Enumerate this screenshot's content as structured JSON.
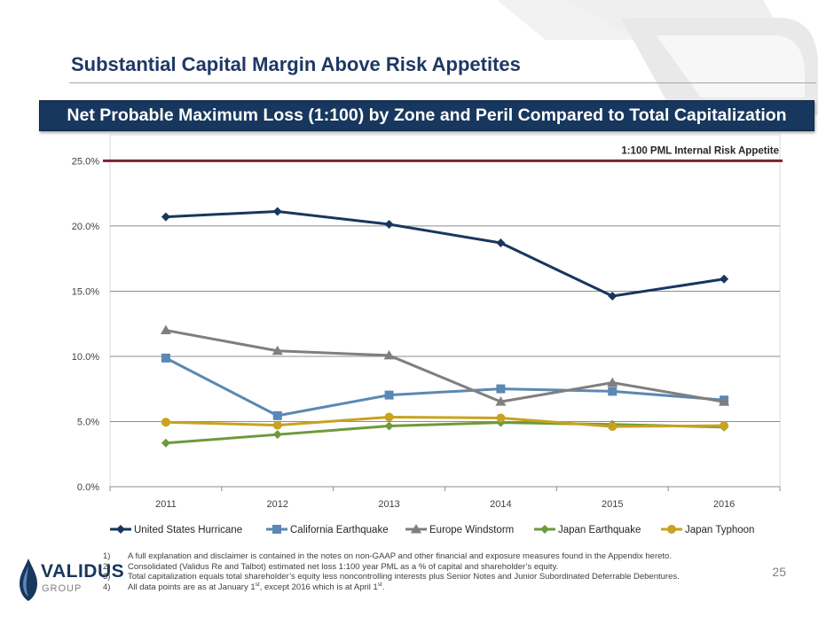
{
  "slide": {
    "title": "Substantial Capital Margin Above Risk Appetites",
    "banner": "Net Probable Maximum Loss (1:100) by Zone and Peril Compared to Total Capitalization",
    "page_number": "25"
  },
  "logo": {
    "name": "VALIDUS",
    "sub": "GROUP"
  },
  "footnotes": [
    {
      "num": "1)",
      "text": "A full explanation and disclaimer is contained in the notes on non-GAAP and other financial and exposure measures found in the Appendix hereto."
    },
    {
      "num": "2)",
      "text": "Consolidated (Validus Re and Talbot) estimated net loss 1:100 year PML as a % of capital and shareholder’s equity."
    },
    {
      "num": "3)",
      "text": "Total capitalization equals total shareholder’s equity less noncontrolling interests plus Senior Notes and Junior Subordinated Deferrable Debentures."
    },
    {
      "num": "4)",
      "text_before": "All data points are as at January 1",
      "sup1": "st",
      "text_mid": ", except 2016 which is at April 1",
      "sup2": "st",
      "text_after": "."
    }
  ],
  "chart_data": {
    "type": "line",
    "categories": [
      "2011",
      "2012",
      "2013",
      "2014",
      "2015",
      "2016"
    ],
    "y_ticks": [
      "0.0%",
      "5.0%",
      "10.0%",
      "15.0%",
      "20.0%",
      "25.0%"
    ],
    "ylim": [
      0,
      0.27
    ],
    "grid": true,
    "legend_position": "bottom",
    "reference_line": {
      "value": 0.25,
      "label": "1:100 PML Internal Risk Appetite",
      "color": "#7b2332"
    },
    "series": [
      {
        "name": "United States Hurricane",
        "marker": "diamond",
        "color": "#17375e",
        "values": [
          0.207,
          0.2112,
          0.2013,
          0.187,
          0.1462,
          0.1593
        ]
      },
      {
        "name": "California Earthquake",
        "marker": "square",
        "color": "#5b88b4",
        "values": [
          0.0987,
          0.0545,
          0.0703,
          0.0751,
          0.0732,
          0.0665
        ]
      },
      {
        "name": "Europe Windstorm",
        "marker": "triangle",
        "color": "#7f7f7f",
        "values": [
          0.12,
          0.1042,
          0.1007,
          0.0652,
          0.0798,
          0.0651
        ]
      },
      {
        "name": "Japan Earthquake",
        "marker": "diamond",
        "color": "#6e9a3c",
        "values": [
          0.0335,
          0.04,
          0.0466,
          0.0492,
          0.0478,
          0.0457
        ]
      },
      {
        "name": "Japan Typhoon",
        "marker": "circle",
        "color": "#c9a21f",
        "values": [
          0.0495,
          0.0472,
          0.0534,
          0.0527,
          0.0462,
          0.0468
        ]
      }
    ]
  }
}
